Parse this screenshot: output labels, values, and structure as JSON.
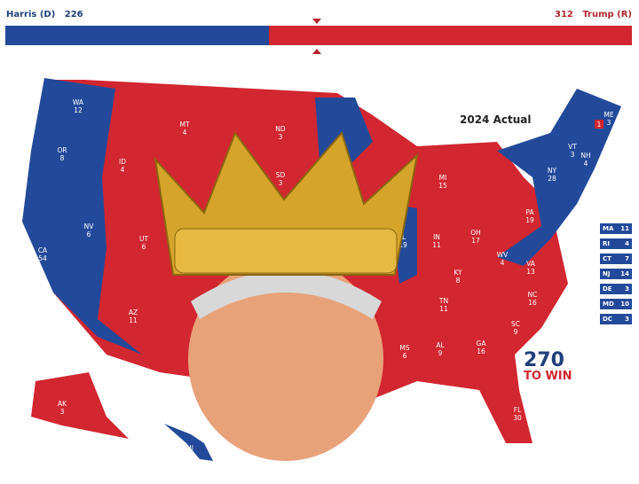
{
  "header": {
    "harris_label": "Harris (D)",
    "harris_votes": "226",
    "trump_votes": "312",
    "trump_label": "Trump (R)"
  },
  "progress": {
    "dem_fraction": 0.42,
    "rep_fraction": 0.58,
    "dem_color": "#234a9a",
    "rep_color": "#d22630"
  },
  "map_title": "2024 Actual",
  "logo": {
    "top": "270",
    "bottom": "TO WIN"
  },
  "states": [
    {
      "n": "WA",
      "v": "12",
      "p": "D"
    },
    {
      "n": "OR",
      "v": "8",
      "p": "D"
    },
    {
      "n": "CA",
      "v": "54",
      "p": "D"
    },
    {
      "n": "ID",
      "v": "4",
      "p": "R"
    },
    {
      "n": "MT",
      "v": "4",
      "p": "R"
    },
    {
      "n": "ND",
      "v": "3",
      "p": "R"
    },
    {
      "n": "SD",
      "v": "3",
      "p": "R"
    },
    {
      "n": "NV",
      "v": "6",
      "p": "R"
    },
    {
      "n": "UT",
      "v": "6",
      "p": "R"
    },
    {
      "n": "AZ",
      "v": "11",
      "p": "R"
    },
    {
      "n": "MI",
      "v": "15",
      "p": "R"
    },
    {
      "n": "IL",
      "v": "19",
      "p": "D"
    },
    {
      "n": "IN",
      "v": "11",
      "p": "R"
    },
    {
      "n": "OH",
      "v": "17",
      "p": "R"
    },
    {
      "n": "PA",
      "v": "19",
      "p": "R"
    },
    {
      "n": "NY",
      "v": "28",
      "p": "D"
    },
    {
      "n": "VT",
      "v": "3",
      "p": "D"
    },
    {
      "n": "NH",
      "v": "4",
      "p": "D"
    },
    {
      "n": "ME",
      "v": "3",
      "p": "D"
    },
    {
      "n": "KY",
      "v": "8",
      "p": "R"
    },
    {
      "n": "WV",
      "v": "4",
      "p": "R"
    },
    {
      "n": "VA",
      "v": "13",
      "p": "D"
    },
    {
      "n": "NC",
      "v": "16",
      "p": "R"
    },
    {
      "n": "TN",
      "v": "11",
      "p": "R"
    },
    {
      "n": "SC",
      "v": "9",
      "p": "R"
    },
    {
      "n": "GA",
      "v": "16",
      "p": "R"
    },
    {
      "n": "AL",
      "v": "9",
      "p": "R"
    },
    {
      "n": "MS",
      "v": "6",
      "p": "R"
    },
    {
      "n": "FL",
      "v": "30",
      "p": "R"
    },
    {
      "n": "AK",
      "v": "3",
      "p": "R"
    },
    {
      "n": "HI",
      "v": "4",
      "p": "D"
    }
  ],
  "me_district": "1",
  "small_states": [
    {
      "n": "MA",
      "v": "11"
    },
    {
      "n": "RI",
      "v": "4"
    },
    {
      "n": "CT",
      "v": "7"
    },
    {
      "n": "NJ",
      "v": "14"
    },
    {
      "n": "DE",
      "v": "3"
    },
    {
      "n": "MD",
      "v": "10"
    },
    {
      "n": "DC",
      "v": "3"
    }
  ]
}
